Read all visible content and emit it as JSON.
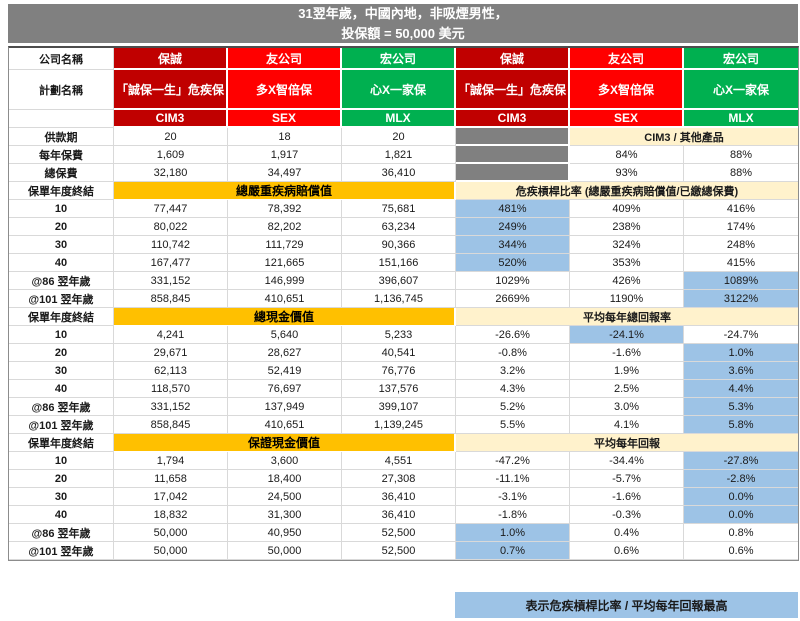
{
  "title": {
    "line1": "31翌年歲，中國內地，非吸煙男性，",
    "line2": "投保額 = 50,000 美元"
  },
  "header": {
    "company_label": "公司名稱",
    "plan_label": "計劃名稱",
    "companies": [
      "保誠",
      "友公司",
      "宏公司",
      "保誠",
      "友公司",
      "宏公司"
    ],
    "plans": [
      "「誠保一生」危疾保",
      "多X智倍保",
      "心X一家保",
      "「誠保一生」危疾保",
      "多X智倍保",
      "心X一家保"
    ],
    "codes": [
      "CIM3",
      "SEX",
      "MLX",
      "CIM3",
      "SEX",
      "MLX"
    ],
    "column_colors": [
      "#C00000",
      "#FF0000",
      "#00B050",
      "#C00000",
      "#FF0000",
      "#00B050"
    ]
  },
  "info_rows": [
    {
      "label": "供款期",
      "values": [
        "20",
        "18",
        "20"
      ],
      "right_merged_header": "CIM3 / 其他產品"
    },
    {
      "label": "每年保費",
      "values": [
        "1,609",
        "1,917",
        "1,821"
      ],
      "ratios": [
        "84%",
        "88%"
      ]
    },
    {
      "label": "總保費",
      "values": [
        "32,180",
        "34,497",
        "36,410"
      ],
      "ratios": [
        "93%",
        "88%"
      ]
    }
  ],
  "sections": [
    {
      "row_label": "保單年度終結",
      "left_header": "總嚴重疾病賠償值",
      "right_header": "危疾槓桿比率 (總嚴重疾病賠償值/已繳總保費)",
      "rows": [
        {
          "label": "10",
          "left": [
            "77,447",
            "78,392",
            "75,681"
          ],
          "right": [
            "481%",
            "409%",
            "416%"
          ],
          "right_hl": [
            true,
            false,
            false
          ]
        },
        {
          "label": "20",
          "left": [
            "80,022",
            "82,202",
            "63,234"
          ],
          "right": [
            "249%",
            "238%",
            "174%"
          ],
          "right_hl": [
            true,
            false,
            false
          ]
        },
        {
          "label": "30",
          "left": [
            "110,742",
            "111,729",
            "90,366"
          ],
          "right": [
            "344%",
            "324%",
            "248%"
          ],
          "right_hl": [
            true,
            false,
            false
          ]
        },
        {
          "label": "40",
          "left": [
            "167,477",
            "121,665",
            "151,166"
          ],
          "right": [
            "520%",
            "353%",
            "415%"
          ],
          "right_hl": [
            true,
            false,
            false
          ]
        },
        {
          "label": "@86 翌年歲",
          "left": [
            "331,152",
            "146,999",
            "396,607"
          ],
          "right": [
            "1029%",
            "426%",
            "1089%"
          ],
          "right_hl": [
            false,
            false,
            true
          ]
        },
        {
          "label": "@101 翌年歲",
          "left": [
            "858,845",
            "410,651",
            "1,136,745"
          ],
          "right": [
            "2669%",
            "1190%",
            "3122%"
          ],
          "right_hl": [
            false,
            false,
            true
          ]
        }
      ]
    },
    {
      "row_label": "保單年度終結",
      "left_header": "總現金價值",
      "right_header": "平均每年總回報率",
      "rows": [
        {
          "label": "10",
          "left": [
            "4,241",
            "5,640",
            "5,233"
          ],
          "right": [
            "-26.6%",
            "-24.1%",
            "-24.7%"
          ],
          "right_hl": [
            false,
            true,
            false
          ]
        },
        {
          "label": "20",
          "left": [
            "29,671",
            "28,627",
            "40,541"
          ],
          "right": [
            "-0.8%",
            "-1.6%",
            "1.0%"
          ],
          "right_hl": [
            false,
            false,
            true
          ]
        },
        {
          "label": "30",
          "left": [
            "62,113",
            "52,419",
            "76,776"
          ],
          "right": [
            "3.2%",
            "1.9%",
            "3.6%"
          ],
          "right_hl": [
            false,
            false,
            true
          ]
        },
        {
          "label": "40",
          "left": [
            "118,570",
            "76,697",
            "137,576"
          ],
          "right": [
            "4.3%",
            "2.5%",
            "4.4%"
          ],
          "right_hl": [
            false,
            false,
            true
          ]
        },
        {
          "label": "@86 翌年歲",
          "left": [
            "331,152",
            "137,949",
            "399,107"
          ],
          "right": [
            "5.2%",
            "3.0%",
            "5.3%"
          ],
          "right_hl": [
            false,
            false,
            true
          ]
        },
        {
          "label": "@101 翌年歲",
          "left": [
            "858,845",
            "410,651",
            "1,139,245"
          ],
          "right": [
            "5.5%",
            "4.1%",
            "5.8%"
          ],
          "right_hl": [
            false,
            false,
            true
          ]
        }
      ]
    },
    {
      "row_label": "保單年度終結",
      "left_header": "保證現金價值",
      "right_header": "平均每年回報",
      "rows": [
        {
          "label": "10",
          "left": [
            "1,794",
            "3,600",
            "4,551"
          ],
          "right": [
            "-47.2%",
            "-34.4%",
            "-27.8%"
          ],
          "right_hl": [
            false,
            false,
            true
          ]
        },
        {
          "label": "20",
          "left": [
            "11,658",
            "18,400",
            "27,308"
          ],
          "right": [
            "-11.1%",
            "-5.7%",
            "-2.8%"
          ],
          "right_hl": [
            false,
            false,
            true
          ]
        },
        {
          "label": "30",
          "left": [
            "17,042",
            "24,500",
            "36,410"
          ],
          "right": [
            "-3.1%",
            "-1.6%",
            "0.0%"
          ],
          "right_hl": [
            false,
            false,
            true
          ]
        },
        {
          "label": "40",
          "left": [
            "18,832",
            "31,300",
            "36,410"
          ],
          "right": [
            "-1.8%",
            "-0.3%",
            "0.0%"
          ],
          "right_hl": [
            false,
            false,
            true
          ]
        },
        {
          "label": "@86 翌年歲",
          "left": [
            "50,000",
            "40,950",
            "52,500"
          ],
          "right": [
            "1.0%",
            "0.4%",
            "0.8%"
          ],
          "right_hl": [
            true,
            false,
            false
          ]
        },
        {
          "label": "@101 翌年歲",
          "left": [
            "50,000",
            "50,000",
            "52,500"
          ],
          "right": [
            "0.7%",
            "0.6%",
            "0.6%"
          ],
          "right_hl": [
            true,
            false,
            false
          ]
        }
      ]
    }
  ],
  "footnote": "表示危疾槓桿比率 / 平均每年回報最高",
  "colors": {
    "title_bar": "#808080",
    "dark_red": "#C00000",
    "red": "#FF0000",
    "green": "#00B050",
    "section_yellow": "#FFC000",
    "section_beige": "#FFF2CC",
    "highlight_blue": "#9DC3E6",
    "filler_gray": "#808080"
  }
}
